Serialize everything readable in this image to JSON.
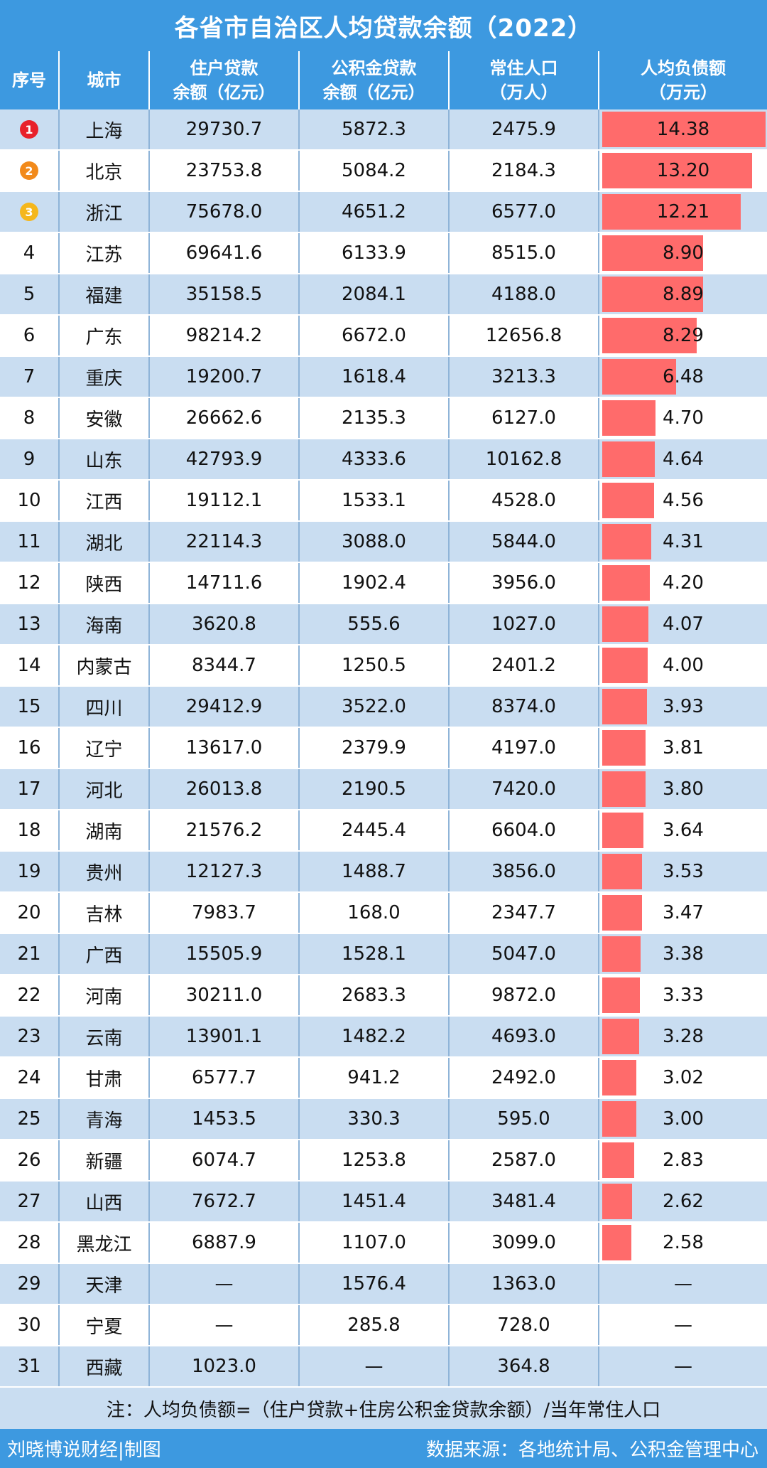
{
  "title": "各省市自治区人均贷款余额（2022）",
  "headers": [
    {
      "line1": "序号",
      "line2": ""
    },
    {
      "line1": "城市",
      "line2": ""
    },
    {
      "line1": "住户贷款",
      "line2": "余额（亿元）"
    },
    {
      "line1": "公积金贷款",
      "line2": "余额（亿元）"
    },
    {
      "line1": "常住人口",
      "line2": "（万人）"
    },
    {
      "line1": "人均负债额",
      "line2": "（万元）"
    }
  ],
  "colors": {
    "header": "#3d99e0",
    "stripe": "#c9ddf1",
    "bar": "#ff6b6b",
    "medal_1": "#e8212b",
    "medal_2": "#f28a1b",
    "medal_3": "#f5b71c"
  },
  "chart_data": {
    "type": "table",
    "title": "各省市自治区人均贷款余额（2022）",
    "bar_column": "人均负债额（万元）",
    "bar_max": 14.38,
    "rows": [
      {
        "rank": "1",
        "city": "上海",
        "household": "29730.7",
        "fund": "5872.3",
        "population": "2475.9",
        "per_capita": "14.38",
        "value": 14.38
      },
      {
        "rank": "2",
        "city": "北京",
        "household": "23753.8",
        "fund": "5084.2",
        "population": "2184.3",
        "per_capita": "13.20",
        "value": 13.2
      },
      {
        "rank": "3",
        "city": "浙江",
        "household": "75678.0",
        "fund": "4651.2",
        "population": "6577.0",
        "per_capita": "12.21",
        "value": 12.21
      },
      {
        "rank": "4",
        "city": "江苏",
        "household": "69641.6",
        "fund": "6133.9",
        "population": "8515.0",
        "per_capita": "8.90",
        "value": 8.9
      },
      {
        "rank": "5",
        "city": "福建",
        "household": "35158.5",
        "fund": "2084.1",
        "population": "4188.0",
        "per_capita": "8.89",
        "value": 8.89
      },
      {
        "rank": "6",
        "city": "广东",
        "household": "98214.2",
        "fund": "6672.0",
        "population": "12656.8",
        "per_capita": "8.29",
        "value": 8.29
      },
      {
        "rank": "7",
        "city": "重庆",
        "household": "19200.7",
        "fund": "1618.4",
        "population": "3213.3",
        "per_capita": "6.48",
        "value": 6.48
      },
      {
        "rank": "8",
        "city": "安徽",
        "household": "26662.6",
        "fund": "2135.3",
        "population": "6127.0",
        "per_capita": "4.70",
        "value": 4.7
      },
      {
        "rank": "9",
        "city": "山东",
        "household": "42793.9",
        "fund": "4333.6",
        "population": "10162.8",
        "per_capita": "4.64",
        "value": 4.64
      },
      {
        "rank": "10",
        "city": "江西",
        "household": "19112.1",
        "fund": "1533.1",
        "population": "4528.0",
        "per_capita": "4.56",
        "value": 4.56
      },
      {
        "rank": "11",
        "city": "湖北",
        "household": "22114.3",
        "fund": "3088.0",
        "population": "5844.0",
        "per_capita": "4.31",
        "value": 4.31
      },
      {
        "rank": "12",
        "city": "陕西",
        "household": "14711.6",
        "fund": "1902.4",
        "population": "3956.0",
        "per_capita": "4.20",
        "value": 4.2
      },
      {
        "rank": "13",
        "city": "海南",
        "household": "3620.8",
        "fund": "555.6",
        "population": "1027.0",
        "per_capita": "4.07",
        "value": 4.07
      },
      {
        "rank": "14",
        "city": "内蒙古",
        "household": "8344.7",
        "fund": "1250.5",
        "population": "2401.2",
        "per_capita": "4.00",
        "value": 4.0
      },
      {
        "rank": "15",
        "city": "四川",
        "household": "29412.9",
        "fund": "3522.0",
        "population": "8374.0",
        "per_capita": "3.93",
        "value": 3.93
      },
      {
        "rank": "16",
        "city": "辽宁",
        "household": "13617.0",
        "fund": "2379.9",
        "population": "4197.0",
        "per_capita": "3.81",
        "value": 3.81
      },
      {
        "rank": "17",
        "city": "河北",
        "household": "26013.8",
        "fund": "2190.5",
        "population": "7420.0",
        "per_capita": "3.80",
        "value": 3.8
      },
      {
        "rank": "18",
        "city": "湖南",
        "household": "21576.2",
        "fund": "2445.4",
        "population": "6604.0",
        "per_capita": "3.64",
        "value": 3.64
      },
      {
        "rank": "19",
        "city": "贵州",
        "household": "12127.3",
        "fund": "1488.7",
        "population": "3856.0",
        "per_capita": "3.53",
        "value": 3.53
      },
      {
        "rank": "20",
        "city": "吉林",
        "household": "7983.7",
        "fund": "168.0",
        "population": "2347.7",
        "per_capita": "3.47",
        "value": 3.47
      },
      {
        "rank": "21",
        "city": "广西",
        "household": "15505.9",
        "fund": "1528.1",
        "population": "5047.0",
        "per_capita": "3.38",
        "value": 3.38
      },
      {
        "rank": "22",
        "city": "河南",
        "household": "30211.0",
        "fund": "2683.3",
        "population": "9872.0",
        "per_capita": "3.33",
        "value": 3.33
      },
      {
        "rank": "23",
        "city": "云南",
        "household": "13901.1",
        "fund": "1482.2",
        "population": "4693.0",
        "per_capita": "3.28",
        "value": 3.28
      },
      {
        "rank": "24",
        "city": "甘肃",
        "household": "6577.7",
        "fund": "941.2",
        "population": "2492.0",
        "per_capita": "3.02",
        "value": 3.02
      },
      {
        "rank": "25",
        "city": "青海",
        "household": "1453.5",
        "fund": "330.3",
        "population": "595.0",
        "per_capita": "3.00",
        "value": 3.0
      },
      {
        "rank": "26",
        "city": "新疆",
        "household": "6074.7",
        "fund": "1253.8",
        "population": "2587.0",
        "per_capita": "2.83",
        "value": 2.83
      },
      {
        "rank": "27",
        "city": "山西",
        "household": "7672.7",
        "fund": "1451.4",
        "population": "3481.4",
        "per_capita": "2.62",
        "value": 2.62
      },
      {
        "rank": "28",
        "city": "黑龙江",
        "household": "6887.9",
        "fund": "1107.0",
        "population": "3099.0",
        "per_capita": "2.58",
        "value": 2.58
      },
      {
        "rank": "29",
        "city": "天津",
        "household": "—",
        "fund": "1576.4",
        "population": "1363.0",
        "per_capita": "—",
        "value": null
      },
      {
        "rank": "30",
        "city": "宁夏",
        "household": "—",
        "fund": "285.8",
        "population": "728.0",
        "per_capita": "—",
        "value": null
      },
      {
        "rank": "31",
        "city": "西藏",
        "household": "1023.0",
        "fund": "—",
        "population": "364.8",
        "per_capita": "—",
        "value": null
      }
    ]
  },
  "note": "注：人均负债额=（住户贷款+住房公积金贷款余额）/当年常住人口",
  "footer": {
    "left": "刘晓博说财经|制图",
    "right": "数据来源：各地统计局、公积金管理中心"
  }
}
